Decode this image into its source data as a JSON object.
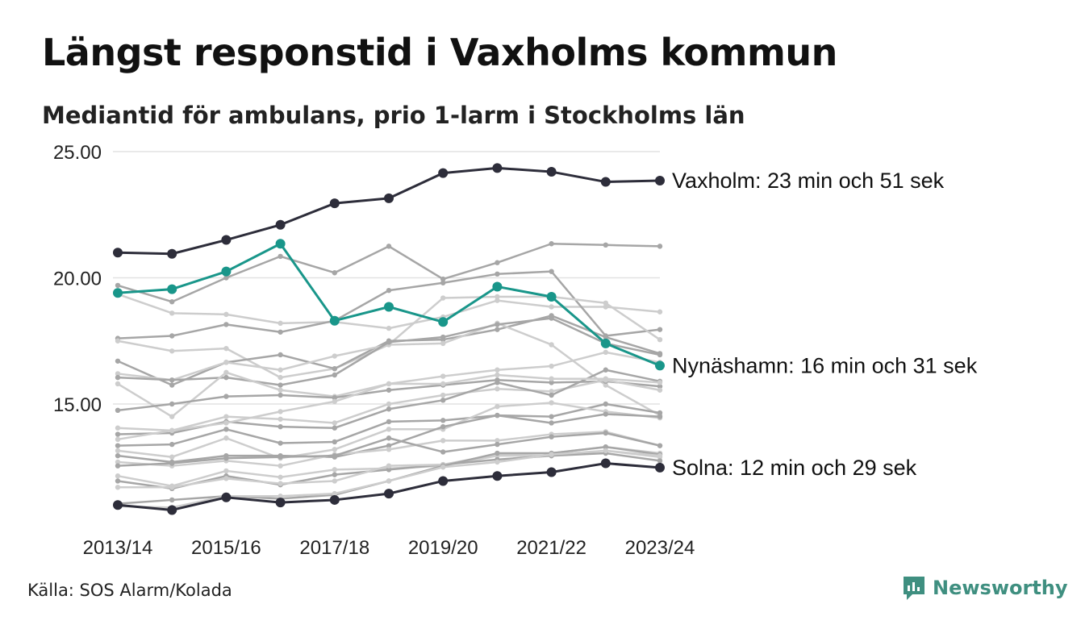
{
  "header": {
    "title": "Längst responstid i Vaxholms kommun",
    "subtitle": "Mediantid för ambulans, prio 1-larm i Stockholms län"
  },
  "footer": {
    "source": "Källa: SOS Alarm/Kolada",
    "brand": "Newsworthy",
    "brand_icon": "newsworthy-logo-icon"
  },
  "colors": {
    "highlight_dark": "#2d2d3a",
    "highlight_teal": "#19968a",
    "background_lines": [
      "#a6a6a6",
      "#cdcdcd"
    ],
    "grid": "#e2e2e2",
    "brand": "#3f8f80"
  },
  "chart_data": {
    "type": "line",
    "x": [
      "2013/14",
      "2014/15",
      "2015/16",
      "2016/17",
      "2017/18",
      "2018/19",
      "2019/20",
      "2020/21",
      "2021/22",
      "2022/23",
      "2023/24"
    ],
    "x_tick_labels": [
      "2013/14",
      "2015/16",
      "2017/18",
      "2019/20",
      "2021/22",
      "2023/24"
    ],
    "y_ticks": [
      "15.00",
      "20.00",
      "25.00"
    ],
    "ylim": [
      10.3,
      25.0
    ],
    "grid": true,
    "highlighted_series": [
      {
        "label": "Vaxholm: 23 min och 51 sek",
        "color": "#2d2d3a",
        "values": [
          21.0,
          20.95,
          21.5,
          22.1,
          22.95,
          23.15,
          24.15,
          24.35,
          24.2,
          23.8,
          23.85
        ]
      },
      {
        "label": "Nynäshamn: 16 min och 31 sek",
        "color": "#19968a",
        "values": [
          19.4,
          19.55,
          20.25,
          21.35,
          18.3,
          18.85,
          18.25,
          19.65,
          19.25,
          17.4,
          16.52
        ]
      },
      {
        "label": "Solna: 12 min och 29 sek",
        "color": "#2d2d3a",
        "values": [
          11.0,
          10.8,
          11.3,
          11.1,
          11.2,
          11.45,
          11.95,
          12.15,
          12.3,
          12.65,
          12.48
        ]
      }
    ],
    "background_series": [
      {
        "values": [
          19.7,
          19.05,
          20.0,
          20.85,
          20.2,
          21.25,
          19.95,
          20.6,
          21.35,
          21.3,
          21.25
        ]
      },
      {
        "values": [
          19.35,
          18.6,
          18.55,
          18.2,
          18.25,
          18.0,
          18.45,
          19.1,
          18.85,
          18.85,
          18.65
        ]
      },
      {
        "values": [
          17.6,
          17.7,
          18.15,
          17.85,
          18.3,
          19.5,
          19.8,
          20.15,
          20.25,
          17.7,
          17.95
        ]
      },
      {
        "values": [
          17.5,
          17.1,
          17.2,
          16.05,
          16.4,
          17.35,
          19.2,
          19.25,
          19.25,
          19.0,
          17.55
        ]
      },
      {
        "values": [
          16.7,
          15.75,
          16.65,
          16.95,
          16.4,
          17.5,
          17.55,
          17.95,
          18.5,
          17.65,
          17.0
        ]
      },
      {
        "values": [
          16.2,
          15.95,
          16.65,
          16.35,
          16.9,
          17.35,
          17.4,
          18.2,
          17.35,
          15.75,
          14.55
        ]
      },
      {
        "values": [
          16.05,
          15.95,
          16.05,
          15.75,
          16.15,
          17.45,
          17.65,
          18.15,
          18.4,
          17.4,
          16.95
        ]
      },
      {
        "values": [
          15.8,
          14.5,
          16.25,
          15.55,
          15.3,
          15.8,
          16.1,
          16.35,
          16.5,
          17.05,
          16.65
        ]
      },
      {
        "values": [
          14.75,
          15.0,
          15.3,
          15.35,
          15.25,
          15.55,
          15.75,
          15.95,
          15.85,
          15.9,
          15.7
        ]
      },
      {
        "values": [
          14.05,
          13.95,
          14.5,
          14.4,
          14.25,
          15.0,
          15.35,
          15.6,
          15.5,
          15.95,
          15.55
        ]
      },
      {
        "values": [
          13.8,
          13.85,
          14.3,
          14.1,
          14.05,
          14.8,
          15.15,
          15.85,
          15.35,
          16.35,
          15.9
        ]
      },
      {
        "values": [
          13.6,
          13.95,
          14.25,
          14.7,
          15.1,
          15.8,
          15.8,
          16.15,
          16.0,
          16.0,
          15.85
        ]
      },
      {
        "values": [
          13.35,
          13.4,
          14.0,
          13.45,
          13.5,
          14.3,
          14.35,
          14.55,
          14.5,
          15.0,
          14.65
        ]
      },
      {
        "values": [
          13.15,
          12.9,
          13.65,
          12.85,
          13.2,
          14.0,
          14.0,
          14.9,
          15.05,
          14.7,
          14.45
        ]
      },
      {
        "values": [
          12.95,
          12.7,
          12.95,
          12.95,
          12.9,
          13.35,
          14.1,
          14.55,
          14.25,
          14.6,
          14.5
        ]
      },
      {
        "values": [
          12.7,
          12.55,
          12.75,
          12.55,
          13.0,
          13.2,
          13.55,
          13.55,
          13.8,
          13.9,
          13.35
        ]
      },
      {
        "values": [
          12.55,
          12.65,
          12.85,
          12.9,
          12.95,
          13.65,
          13.1,
          13.4,
          13.7,
          13.85,
          13.35
        ]
      },
      {
        "values": [
          12.15,
          11.75,
          12.35,
          12.1,
          12.4,
          12.45,
          12.55,
          12.95,
          12.95,
          13.15,
          12.9
        ]
      },
      {
        "values": [
          11.95,
          11.65,
          12.15,
          11.8,
          12.2,
          12.4,
          12.6,
          12.8,
          12.95,
          13.05,
          12.75
        ]
      },
      {
        "values": [
          11.7,
          11.7,
          12.05,
          11.85,
          11.95,
          12.55,
          12.6,
          13.0,
          13.05,
          13.3,
          13.05
        ]
      },
      {
        "values": [
          11.05,
          11.2,
          11.35,
          11.25,
          11.4,
          11.95,
          12.55,
          13.05,
          13.05,
          13.3,
          13.0
        ]
      },
      {
        "values": [
          10.95,
          10.9,
          11.35,
          11.35,
          11.45,
          11.95,
          12.5,
          12.7,
          13.0,
          13.15,
          12.95
        ]
      }
    ]
  }
}
